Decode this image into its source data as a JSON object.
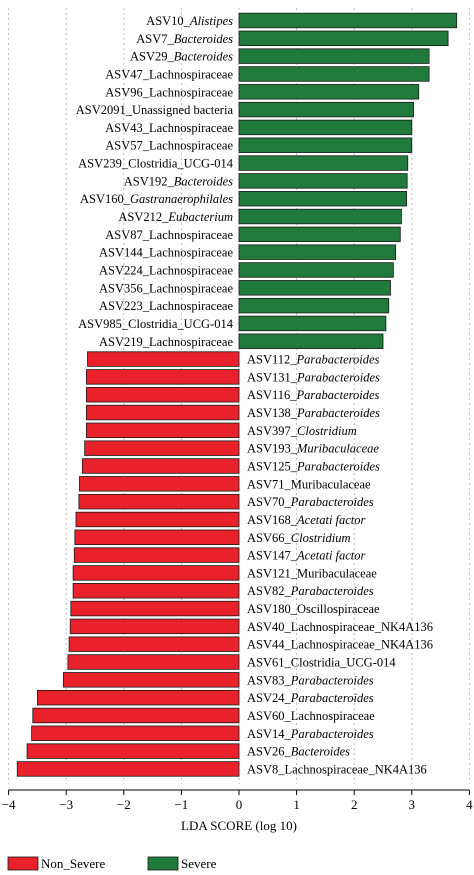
{
  "chart_data": {
    "type": "bar",
    "orientation": "horizontal",
    "xlabel": "LDA SCORE (log 10)",
    "xlim": [
      -4,
      4
    ],
    "xticks": [
      -4,
      -3,
      -2,
      -1,
      0,
      1,
      2,
      3,
      4
    ],
    "xtick_labels": [
      "−4",
      "−3",
      "−2",
      "−1",
      "0",
      "1",
      "2",
      "3",
      "4"
    ],
    "grid": "vertical-dashed",
    "legend_position": "bottom",
    "series": [
      {
        "name": "Non_Severe",
        "color": "#e8212b"
      },
      {
        "name": "Severe",
        "color": "#1f7a3b"
      }
    ],
    "bars": [
      {
        "label": "ASV10_",
        "italic": "Alistipes",
        "value": 3.78,
        "group": 1
      },
      {
        "label": "ASV7_",
        "italic": "Bacteroides",
        "value": 3.63,
        "group": 1
      },
      {
        "label": "ASV29_",
        "italic": "Bacteroides",
        "value": 3.3,
        "group": 1
      },
      {
        "label": "ASV47_Lachnospiraceae",
        "italic": "",
        "value": 3.3,
        "group": 1
      },
      {
        "label": "ASV96_Lachnospiraceae",
        "italic": "",
        "value": 3.12,
        "group": 1
      },
      {
        "label": "ASV2091_Unassigned bacteria",
        "italic": "",
        "value": 3.03,
        "group": 1
      },
      {
        "label": "ASV43_Lachnospiraceae",
        "italic": "",
        "value": 3.0,
        "group": 1
      },
      {
        "label": "ASV57_Lachnospiraceae",
        "italic": "",
        "value": 3.0,
        "group": 1
      },
      {
        "label": "ASV239_Clostridia_UCG-014",
        "italic": "",
        "value": 2.93,
        "group": 1
      },
      {
        "label": "ASV192_",
        "italic": "Bacteroides",
        "value": 2.92,
        "group": 1
      },
      {
        "label": "ASV160_",
        "italic": "Gastranaerophilales",
        "value": 2.91,
        "group": 1
      },
      {
        "label": "ASV212_",
        "italic": "Eubacterium",
        "value": 2.82,
        "group": 1
      },
      {
        "label": "ASV87_Lachnospiraceae",
        "italic": "",
        "value": 2.8,
        "group": 1
      },
      {
        "label": "ASV144_Lachnospiraceae",
        "italic": "",
        "value": 2.72,
        "group": 1
      },
      {
        "label": "ASV224_Lachnospiraceae",
        "italic": "",
        "value": 2.68,
        "group": 1
      },
      {
        "label": "ASV356_Lachnospiraceae",
        "italic": "",
        "value": 2.63,
        "group": 1
      },
      {
        "label": "ASV223_Lachnospiraceae",
        "italic": "",
        "value": 2.6,
        "group": 1
      },
      {
        "label": "ASV985_Clostridia_UCG-014",
        "italic": "",
        "value": 2.55,
        "group": 1
      },
      {
        "label": "ASV219_Lachnospiraceae",
        "italic": "",
        "value": 2.5,
        "group": 1
      },
      {
        "label": "ASV112_",
        "italic": "Parabacteroides",
        "value": -2.63,
        "group": 0
      },
      {
        "label": "ASV131_",
        "italic": "Parabacteroides",
        "value": -2.65,
        "group": 0
      },
      {
        "label": "ASV116_",
        "italic": "Parabacteroides",
        "value": -2.65,
        "group": 0
      },
      {
        "label": "ASV138_",
        "italic": "Parabacteroides",
        "value": -2.65,
        "group": 0
      },
      {
        "label": "ASV397_",
        "italic": "Clostridium",
        "value": -2.65,
        "group": 0
      },
      {
        "label": "ASV193_",
        "italic": "Muribaculaceae",
        "value": -2.68,
        "group": 0
      },
      {
        "label": "ASV125_",
        "italic": "Parabacteroides",
        "value": -2.72,
        "group": 0
      },
      {
        "label": "ASV71_Muribaculaceae",
        "italic": "",
        "value": -2.77,
        "group": 0
      },
      {
        "label": "ASV70_",
        "italic": "Parabacteroides",
        "value": -2.78,
        "group": 0
      },
      {
        "label": "ASV168_",
        "italic": "Acetati factor",
        "value": -2.83,
        "group": 0
      },
      {
        "label": "ASV66_",
        "italic": "Clostridium",
        "value": -2.85,
        "group": 0
      },
      {
        "label": "ASV147_",
        "italic": "Acetati factor",
        "value": -2.86,
        "group": 0
      },
      {
        "label": "ASV121_Muribaculaceae",
        "italic": "",
        "value": -2.88,
        "group": 0
      },
      {
        "label": "ASV82_",
        "italic": "Parabacteroides",
        "value": -2.88,
        "group": 0
      },
      {
        "label": "ASV180_Oscillospiraceae",
        "italic": "",
        "value": -2.92,
        "group": 0
      },
      {
        "label": "ASV40_Lachnospiraceae_NK4A136",
        "italic": "",
        "value": -2.93,
        "group": 0
      },
      {
        "label": "ASV44_Lachnospiraceae_NK4A136",
        "italic": "",
        "value": -2.95,
        "group": 0
      },
      {
        "label": "ASV61_Clostridia_UCG-014",
        "italic": "",
        "value": -2.97,
        "group": 0
      },
      {
        "label": "ASV83_",
        "italic": "Parabacteroides",
        "value": -3.05,
        "group": 0
      },
      {
        "label": "ASV24_",
        "italic": "Parabacteroides",
        "value": -3.5,
        "group": 0
      },
      {
        "label": "ASV60_Lachnospiraceae",
        "italic": "",
        "value": -3.58,
        "group": 0
      },
      {
        "label": "ASV14_",
        "italic": "Parabacteroides",
        "value": -3.6,
        "group": 0
      },
      {
        "label": "ASV26_",
        "italic": "Bacteroides",
        "value": -3.68,
        "group": 0
      },
      {
        "label": "ASV8_Lachnospiraceae_NK4A136",
        "italic": "",
        "value": -3.85,
        "group": 0
      }
    ]
  }
}
